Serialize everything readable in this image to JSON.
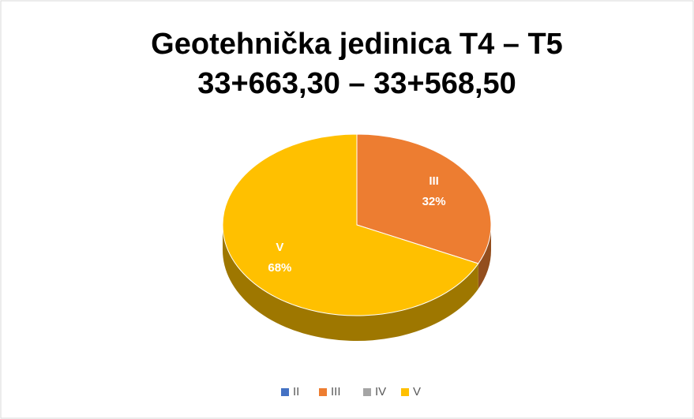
{
  "chart_data": {
    "type": "pie",
    "title": [
      "Geotehnička jedinica T4 – T5",
      "33+663,30 – 33+568,50"
    ],
    "categories": [
      "II",
      "III",
      "IV",
      "V"
    ],
    "values": [
      0,
      32,
      0,
      68
    ],
    "value_labels": [
      null,
      "32%",
      null,
      "68%"
    ],
    "colors": [
      "#4472c4",
      "#ed7d31",
      "#a5a5a5",
      "#ffc000"
    ],
    "legend": "bottom"
  }
}
